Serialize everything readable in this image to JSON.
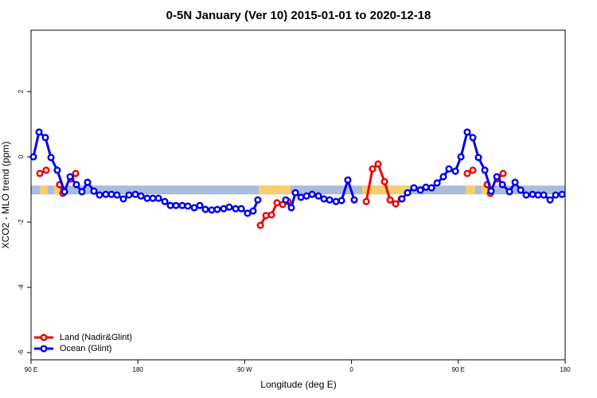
{
  "chart_data": {
    "type": "line",
    "title": "0-5N January (Ver 10)   2015-01-01 to 2020-12-18",
    "xlabel": "Longitude (deg E)",
    "ylabel": "XCO2 - MLO trend (ppm)",
    "xlim": [
      90,
      540
    ],
    "xticks": [
      {
        "value": 90,
        "label": "90 E"
      },
      180,
      {
        "value": 270,
        "label": "90 W"
      },
      {
        "value": 360,
        "label": "0"
      },
      {
        "value": 450,
        "label": "90 E"
      },
      {
        "value": 540,
        "label": "180"
      }
    ],
    "ylim": [
      -6.22,
      3.88
    ],
    "yticks": [
      -6,
      -4,
      -2,
      0,
      2
    ],
    "legend": "bottomleft",
    "band": {
      "ylim": [
        -1.15,
        -0.88
      ],
      "color": "#a9bcdc",
      "highlight_color": "#f7cf6e",
      "highlights": [
        [
          97.4,
          104
        ],
        [
          109.5,
          116
        ],
        [
          281.8,
          308.6
        ],
        [
          369,
          409.2
        ],
        [
          456.2,
          464.2
        ],
        [
          469.6,
          476.3
        ]
      ]
    },
    "series": [
      {
        "name": "Land (Nadir&Glint)",
        "color": "#ee0000",
        "x": [
          97.4,
          102.7,
          null,
          114.1,
          116.8,
          null,
          123.5,
          127.6,
          null,
          283.2,
          287.9,
          292.6,
          297.2,
          302.0,
          306.6,
          null,
          372.4,
          377.7,
          382.4,
          387.8,
          392.5,
          397.2,
          401.9,
          null,
          457.5,
          462.2,
          null,
          474.3,
          477.0,
          null,
          483.0,
          487.7
        ],
        "values": [
          -0.51,
          -0.41,
          null,
          -0.85,
          -1.12,
          null,
          -0.68,
          -0.51,
          null,
          -2.1,
          -1.8,
          -1.78,
          -1.41,
          -1.46,
          -1.37,
          null,
          -1.37,
          -0.37,
          -0.22,
          -0.76,
          -1.32,
          -1.44,
          -1.29,
          null,
          -0.51,
          -0.41,
          null,
          -0.85,
          -1.12,
          null,
          -0.68,
          -0.51
        ]
      },
      {
        "name": "Ocean (Glint)",
        "color": "#0000ee",
        "x": [
          92.0,
          96.7,
          102.1,
          106.8,
          112.1,
          118.2,
          122.9,
          128.2,
          132.9,
          137.6,
          143.0,
          147.7,
          153.0,
          157.7,
          162.4,
          167.8,
          172.5,
          177.9,
          182.6,
          187.9,
          192.6,
          197.3,
          202.7,
          207.4,
          212.1,
          217.4,
          222.1,
          227.5,
          232.2,
          236.9,
          242.2,
          246.9,
          252.3,
          257.0,
          262.4,
          267.1,
          272.4,
          277.1,
          281.1,
          null,
          304.6,
          309.3,
          312.7,
          317.4,
          322.1,
          326.8,
          332.1,
          336.8,
          341.5,
          346.9,
          351.6,
          356.9,
          362.3,
          null,
          402.5,
          407.2,
          412.6,
          418.0,
          422.7,
          427.4,
          432.1,
          437.4,
          442.1,
          447.5,
          452.2,
          457.5,
          462.2,
          466.9,
          472.3,
          477.6,
          482.4,
          487.1,
          493.1,
          497.8,
          502.5,
          507.2,
          512.5,
          517.2,
          521.9,
          527.3,
          532.0,
          537.4
        ],
        "values": [
          0.0,
          0.76,
          0.59,
          -0.02,
          -0.41,
          -1.07,
          -0.61,
          -0.85,
          -1.07,
          -0.78,
          -1.05,
          -1.17,
          -1.15,
          -1.15,
          -1.17,
          -1.29,
          -1.17,
          -1.15,
          -1.2,
          -1.27,
          -1.27,
          -1.27,
          -1.37,
          -1.49,
          -1.49,
          -1.49,
          -1.51,
          -1.56,
          -1.49,
          -1.61,
          -1.63,
          -1.61,
          -1.59,
          -1.54,
          -1.59,
          -1.59,
          -1.73,
          -1.66,
          -1.32,
          null,
          -1.32,
          -1.56,
          -1.1,
          -1.24,
          -1.2,
          -1.15,
          -1.2,
          -1.29,
          -1.32,
          -1.37,
          -1.34,
          -0.71,
          -1.32,
          null,
          -1.29,
          -1.1,
          -0.95,
          -1.02,
          -0.93,
          -0.95,
          -0.8,
          -0.61,
          -0.37,
          -0.44,
          0.0,
          0.76,
          0.59,
          -0.02,
          -0.41,
          -1.05,
          -0.61,
          -0.85,
          -1.07,
          -0.78,
          -1.02,
          -1.17,
          -1.15,
          -1.17,
          -1.17,
          -1.32,
          -1.17,
          -1.15
        ]
      }
    ]
  }
}
